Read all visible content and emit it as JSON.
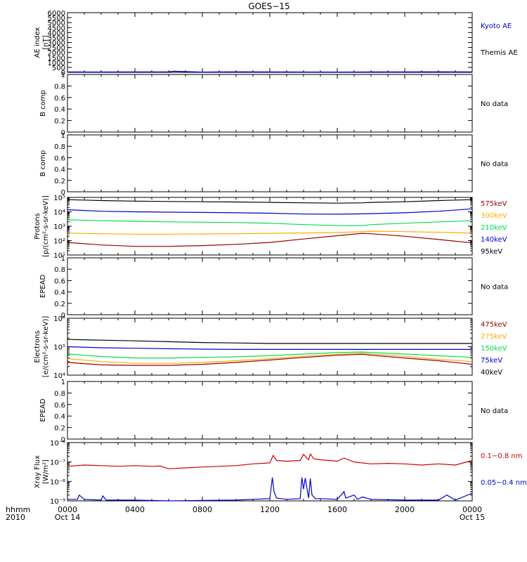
{
  "title": "GOES−15",
  "x_axis": {
    "label_line1": "hhmm",
    "label_line2": "2010",
    "ticks": [
      {
        "t": 0,
        "line1": "0000",
        "line2": "Oct 14"
      },
      {
        "t": 4,
        "line1": "0400",
        "line2": ""
      },
      {
        "t": 8,
        "line1": "0800",
        "line2": ""
      },
      {
        "t": 12,
        "line1": "1200",
        "line2": ""
      },
      {
        "t": 16,
        "line1": "1600",
        "line2": ""
      },
      {
        "t": 20,
        "line1": "2000",
        "line2": ""
      },
      {
        "t": 24,
        "line1": "0000",
        "line2": "Oct 15"
      }
    ],
    "range_hours": [
      0,
      24
    ]
  },
  "colors": {
    "black": "#000000",
    "blue": "#0000cc",
    "red": "#cc0000",
    "orange": "#ffaa00",
    "green": "#00dd55",
    "darkred": "#990000"
  },
  "chart_data": [
    {
      "id": "ae",
      "type": "line",
      "ylabel": [
        "AE index",
        "[nT]"
      ],
      "scale": "linear",
      "ylim": [
        0,
        6000
      ],
      "yticks": [
        0,
        500,
        1000,
        1500,
        2000,
        2500,
        3000,
        3500,
        4000,
        4500,
        5000,
        5500,
        6000
      ],
      "legend": [
        {
          "text": "Kyoto AE",
          "color": "#0000cc"
        },
        {
          "text": "Themis AE",
          "color": "#000000"
        }
      ],
      "series": [
        {
          "name": "Kyoto AE",
          "color": "#0000cc",
          "x": [
            0,
            2,
            4,
            6,
            6.3,
            8,
            9,
            10,
            12,
            14,
            16,
            18,
            20,
            22,
            24
          ],
          "y": [
            40,
            35,
            50,
            60,
            110,
            30,
            45,
            55,
            40,
            35,
            30,
            50,
            45,
            60,
            50
          ]
        }
      ]
    },
    {
      "id": "bcomp1",
      "type": "line",
      "ylabel": [
        "B comp"
      ],
      "scale": "linear",
      "ylim": [
        0,
        1
      ],
      "yticks": [
        0,
        0.2,
        0.4,
        0.6,
        0.8,
        1.0
      ],
      "legend": [
        {
          "text": "No data",
          "color": "#000000"
        }
      ],
      "series": []
    },
    {
      "id": "bcomp2",
      "type": "line",
      "ylabel": [
        "B comp"
      ],
      "scale": "linear",
      "ylim": [
        0,
        1
      ],
      "yticks": [
        0,
        0.2,
        0.4,
        0.6,
        0.8,
        1.0
      ],
      "legend": [
        {
          "text": "No data",
          "color": "#000000"
        }
      ],
      "series": []
    },
    {
      "id": "protons",
      "type": "line",
      "ylabel": [
        "Protons",
        "[p/(cm²-s-sr-keV)]"
      ],
      "scale": "log",
      "ylim": [
        10,
        100000
      ],
      "yticks": [
        10,
        100,
        1000,
        10000,
        100000
      ],
      "yticklabels": [
        "10¹",
        "10²",
        "10³",
        "10⁴",
        "10⁵"
      ],
      "legend": [
        {
          "text": "575keV",
          "color": "#990000"
        },
        {
          "text": "300keV",
          "color": "#ffaa00"
        },
        {
          "text": "210keV",
          "color": "#00dd55"
        },
        {
          "text": "140keV",
          "color": "#0000cc"
        },
        {
          "text": "95keV",
          "color": "#000000"
        }
      ],
      "series": [
        {
          "name": "95keV",
          "color": "#000000",
          "x": [
            0,
            2,
            4,
            6,
            8,
            10,
            12,
            14,
            16,
            17.5,
            18,
            20,
            22,
            24
          ],
          "y": [
            70000,
            60000,
            55000,
            52000,
            50000,
            48000,
            45000,
            42000,
            40000,
            42000,
            45000,
            50000,
            60000,
            70000
          ]
        },
        {
          "name": "140keV",
          "color": "#0000cc",
          "x": [
            0,
            2,
            4,
            6,
            8,
            10,
            12,
            14,
            16,
            17.5,
            18,
            20,
            22,
            24
          ],
          "y": [
            14000,
            11000,
            10000,
            9500,
            9000,
            8500,
            8000,
            7000,
            6800,
            7200,
            7500,
            8500,
            11000,
            16000
          ]
        },
        {
          "name": "210keV",
          "color": "#00dd55",
          "x": [
            0,
            2,
            4,
            6,
            8,
            10,
            12,
            14,
            16,
            17.5,
            18,
            20,
            22,
            24
          ],
          "y": [
            2800,
            2400,
            2200,
            2000,
            1900,
            1800,
            1600,
            1300,
            1100,
            1100,
            1300,
            1600,
            2000,
            2400
          ]
        },
        {
          "name": "300keV",
          "color": "#ffaa00",
          "x": [
            0,
            2,
            4,
            6,
            8,
            10,
            12,
            14,
            16,
            17.5,
            18,
            20,
            22,
            24
          ],
          "y": [
            330,
            300,
            280,
            280,
            290,
            300,
            320,
            340,
            360,
            420,
            450,
            420,
            380,
            330
          ]
        },
        {
          "name": "575keV",
          "color": "#990000",
          "x": [
            0,
            2,
            4,
            6,
            8,
            10,
            12,
            14,
            16,
            17.5,
            18,
            20,
            22,
            24
          ],
          "y": [
            75,
            50,
            40,
            40,
            45,
            55,
            75,
            130,
            220,
            320,
            300,
            200,
            120,
            70
          ]
        }
      ]
    },
    {
      "id": "epead1",
      "type": "line",
      "ylabel": [
        "EPEAD"
      ],
      "scale": "linear",
      "ylim": [
        0,
        1
      ],
      "yticks": [
        0,
        0.2,
        0.4,
        0.6,
        0.8,
        1.0
      ],
      "legend": [
        {
          "text": "No data",
          "color": "#000000"
        }
      ],
      "series": []
    },
    {
      "id": "electrons",
      "type": "line",
      "ylabel": [
        "Electrons",
        "[e/(cm²-s-sr-keV)]"
      ],
      "scale": "log",
      "ylim": [
        10000,
        1000000
      ],
      "yticks": [
        10000,
        100000,
        1000000
      ],
      "yticklabels": [
        "10⁴",
        "10⁵",
        "10⁶"
      ],
      "legend": [
        {
          "text": "475keV",
          "color": "#990000"
        },
        {
          "text": "275keV",
          "color": "#ffaa00"
        },
        {
          "text": "150keV",
          "color": "#00dd55"
        },
        {
          "text": "75keV",
          "color": "#0000cc"
        },
        {
          "text": "40keV",
          "color": "#000000"
        }
      ],
      "series": [
        {
          "name": "40keV",
          "color": "#000000",
          "x": [
            0,
            2,
            4,
            6,
            8,
            10,
            12,
            14,
            16,
            17.5,
            18,
            20,
            22,
            24
          ],
          "y": [
            180000,
            170000,
            160000,
            150000,
            140000,
            135000,
            130000,
            130000,
            130000,
            130000,
            130000,
            130000,
            130000,
            130000
          ]
        },
        {
          "name": "75keV",
          "color": "#0000cc",
          "x": [
            0,
            2,
            4,
            6,
            8,
            10,
            12,
            14,
            16,
            17.5,
            18,
            20,
            22,
            24
          ],
          "y": [
            100000,
            92000,
            88000,
            85000,
            82000,
            80000,
            80000,
            80000,
            80000,
            80000,
            80000,
            80000,
            80000,
            80000
          ]
        },
        {
          "name": "150keV",
          "color": "#00dd55",
          "x": [
            0,
            2,
            4,
            6,
            8,
            10,
            12,
            14,
            16,
            17.5,
            18,
            20,
            22,
            24
          ],
          "y": [
            55000,
            45000,
            40000,
            40000,
            42000,
            44000,
            48000,
            55000,
            62000,
            65000,
            62000,
            55000,
            48000,
            42000
          ]
        },
        {
          "name": "275keV",
          "color": "#ffaa00",
          "x": [
            0,
            2,
            4,
            6,
            8,
            10,
            12,
            14,
            16,
            17.5,
            18,
            20,
            22,
            24
          ],
          "y": [
            38000,
            30000,
            26000,
            26000,
            28000,
            32000,
            38000,
            46000,
            54000,
            58000,
            55000,
            46000,
            36000,
            30000
          ]
        },
        {
          "name": "475keV",
          "color": "#990000",
          "x": [
            0,
            2,
            4,
            6,
            8,
            10,
            12,
            14,
            16,
            17.5,
            18,
            20,
            22,
            24
          ],
          "y": [
            28000,
            23000,
            22000,
            22000,
            24000,
            28000,
            34000,
            42000,
            50000,
            54000,
            50000,
            40000,
            32000,
            24000
          ]
        }
      ]
    },
    {
      "id": "epead2",
      "type": "line",
      "ylabel": [
        "EPEAD"
      ],
      "scale": "linear",
      "ylim": [
        0,
        1
      ],
      "yticks": [
        0,
        0.2,
        0.4,
        0.6,
        0.8,
        1.0
      ],
      "legend": [
        {
          "text": "No data",
          "color": "#000000"
        }
      ],
      "series": []
    },
    {
      "id": "xray",
      "type": "line",
      "ylabel": [
        "Xray Flux",
        "[W/m²]"
      ],
      "scale": "log",
      "ylim": [
        1e-09,
        1e-06
      ],
      "yticks": [
        1e-09,
        1e-08,
        1e-07,
        1e-06
      ],
      "yticklabels": [
        "10⁻⁹",
        "10⁻⁸",
        "10⁻⁷",
        "10⁻⁶"
      ],
      "legend": [
        {
          "text": "0.1−0.8 nm",
          "color": "#cc0000"
        },
        {
          "text": "0.05−0.4 nm",
          "color": "#0000cc"
        }
      ],
      "series": [
        {
          "name": "0.1−0.8 nm",
          "color": "#cc0000",
          "x": [
            0,
            1,
            2,
            3,
            4,
            5,
            5.5,
            6,
            7,
            8,
            9,
            10,
            11,
            12,
            12.2,
            12.4,
            13,
            13.8,
            14.0,
            14.3,
            14.4,
            14.6,
            15,
            16,
            16.4,
            17,
            18,
            19,
            20,
            21,
            22,
            23,
            24
          ],
          "y": [
            6e-08,
            7e-08,
            6.5e-08,
            6e-08,
            6.5e-08,
            6e-08,
            6.2e-08,
            4.5e-08,
            5e-08,
            5.5e-08,
            6e-08,
            6.5e-08,
            8e-08,
            9e-08,
            2.2e-07,
            1.2e-07,
            1.1e-07,
            1.2e-07,
            2.5e-07,
            1.3e-07,
            2.6e-07,
            1.5e-07,
            1.3e-07,
            1.1e-07,
            1.6e-07,
            1e-07,
            8e-08,
            8.5e-08,
            8e-08,
            7e-08,
            8e-08,
            7e-08,
            1.2e-07
          ]
        },
        {
          "name": "0.05−0.4 nm",
          "color": "#0000cc",
          "x": [
            0,
            0.6,
            0.7,
            1,
            2,
            2.1,
            2.3,
            3,
            4,
            6,
            8,
            10,
            11,
            12,
            12.15,
            12.25,
            12.4,
            13,
            13.8,
            13.9,
            14.0,
            14.1,
            14.3,
            14.4,
            14.5,
            14.7,
            15,
            16,
            16.4,
            16.5,
            17,
            17.2,
            17.5,
            18,
            20,
            22,
            22.5,
            23,
            24
          ],
          "y": [
            1.2e-09,
            1.2e-09,
            2e-09,
            1.2e-09,
            1.1e-09,
            1.8e-09,
            1.1e-09,
            1.1e-09,
            1.1e-09,
            1e-09,
            1.05e-09,
            1.1e-09,
            1.2e-09,
            1.3e-09,
            1.6e-08,
            3e-09,
            1.4e-09,
            1.2e-09,
            1.3e-09,
            1.6e-08,
            4e-09,
            1.5e-08,
            1.4e-09,
            1.4e-08,
            2e-09,
            1.3e-09,
            1.3e-09,
            1.2e-09,
            3e-09,
            1.4e-09,
            2e-09,
            1.2e-09,
            1.6e-09,
            1.2e-09,
            1.1e-09,
            1.1e-09,
            2e-09,
            1.1e-09,
            2.5e-09
          ]
        }
      ]
    }
  ]
}
